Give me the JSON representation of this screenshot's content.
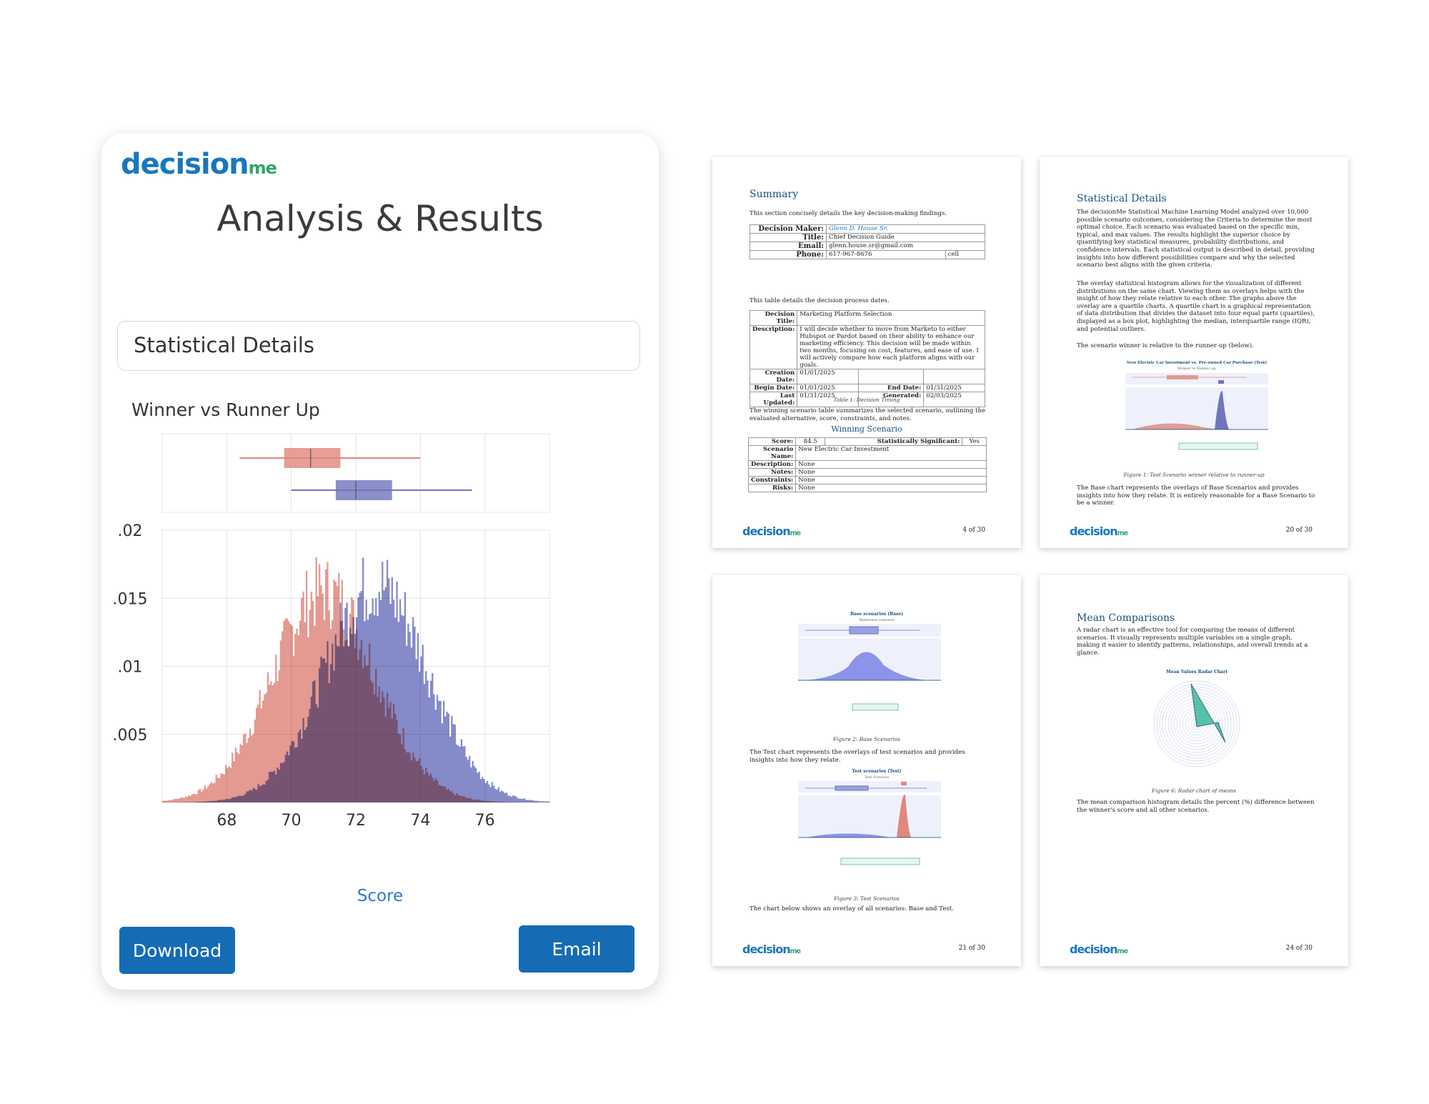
{
  "brand": {
    "name_main": "decision",
    "name_sub": "me",
    "color_primary": "#1877bd",
    "color_secondary": "#2ea866"
  },
  "card": {
    "title": "Analysis & Results",
    "section_title": "Statistical Details",
    "chart_heading": "Winner vs Runner Up",
    "download_label": "Download",
    "email_label": "Email"
  },
  "chart_data": {
    "type": "histogram",
    "xlabel": "Score",
    "x_ticks": [
      68,
      70,
      72,
      74,
      76
    ],
    "y_ticks": [
      ".005",
      ".01",
      ".015",
      ".02"
    ],
    "xlim": [
      66,
      78
    ],
    "ylim": [
      0,
      0.02
    ],
    "series": [
      {
        "color": "#e0877e",
        "mean": 71.0,
        "sd": 1.6,
        "peak": 0.0155,
        "box": {
          "min": 68.4,
          "q1": 69.8,
          "median": 70.6,
          "q3": 71.5,
          "max": 74.0
        }
      },
      {
        "color": "#6f75be",
        "mean": 72.6,
        "sd": 1.6,
        "peak": 0.016,
        "box": {
          "min": 70.0,
          "q1": 71.4,
          "median": 72.0,
          "q3": 73.1,
          "max": 75.6
        }
      }
    ]
  },
  "pages": {
    "summary": {
      "heading": "Summary",
      "intro": "This section concisely details the key decision-making findings.",
      "maker_label": "Decision Maker:",
      "maker": "Glenn D. House Sr.",
      "title_label": "Title:",
      "title": "Chief Decision Guide",
      "email_label": "Email:",
      "email": "glenn.house.sr@gmail.com",
      "phone_label": "Phone:",
      "phone": "617-967-8676",
      "phone_type": "cell",
      "dates_intro": "This table details the decision process dates.",
      "decision_title_label": "Decision Title:",
      "decision_title": "Marketing Platform Selection",
      "description_label": "Description:",
      "description": "I will decide whether to move from Marketo to either Hubspot or Pardot based on their ability to enhance our marketing efficiency. This decision will be made within two months, focusing on cost, features, and ease of use. I will actively compare how each platform aligns with our goals.",
      "creation_label": "Creation Date:",
      "creation": "01/01/2025",
      "begin_label": "Begin Date:",
      "begin": "01/01/2025",
      "end_label": "End Date:",
      "end": "01/31/2025",
      "updated_label": "Last Updated:",
      "updated": "01/31/2025",
      "generated_label": "Generated:",
      "generated": "02/03/2025",
      "table_caption": "Table 1: Decision Timing",
      "winning_intro": "The winning scenario table summarizes the selected scenario, outlining the evaluated alternative, score, constraints, and notes.",
      "winning_heading": "Winning Scenario",
      "score_label": "Score:",
      "score": "84.5",
      "significant_label": "Statistically Significant:",
      "significant": "Yes",
      "scenario_label": "Scenario Name:",
      "scenario": "New Electric Car Investment",
      "desc2_label": "Description:",
      "desc2": "None",
      "notes_label": "Notes:",
      "notes": "None",
      "constraints_label": "Constraints:",
      "constraints": "None",
      "risks_label": "Risks:",
      "risks": "None",
      "page": "4 of 30"
    },
    "stats": {
      "heading": "Statistical Details",
      "p1": "The decisionMe Statistical Machine Learning Model analyzed over 10,000 possible scenario outcomes, considering the Criteria to determine the most optimal choice. Each scenario was evaluated based on the specific min, typical, and max values. The results highlight the superior choice by quantifying key statistical measures, probability distributions, and confidence intervals. Each statistical output is described in detail, providing insights into how different possibilities compare and why the selected scenario best aligns with the given criteria.",
      "p2": "The overlay statistical histogram allows for the visualization of different distributions on the same chart. Viewing them as overlays helps with the insight of how they relate relative to each other. The graphs above the overlay are a quartile charts. A quartile chart is a graphical representation of data distribution that divides the dataset into four equal parts (quartiles), displayed as a box plot, highlighting the median, interquartile range (IQR), and potential outliers.",
      "p3": "The scenario winner is relative to the runner-up (below).",
      "chart_title": "New Electric Car Investment vs. Pre-owned Car Purchase (Test)",
      "chart_sub": "Winner vs Runner-up",
      "caption": "Figure 1: Test Scenario winner relative to runner-up",
      "p4": "The Base chart represents the overlays of Base Scenarios and provides insights into how they relate. It is entirely reasonable for a Base Scenario to be a winner.",
      "page": "20 of 30"
    },
    "base": {
      "chart1_title": "Base scenarios (Base)",
      "chart1_sub": "Reference scenario",
      "caption1": "Figure 2: Base Scenarios",
      "p1": "The Test chart represents the overlays of test scenarios and provides insights into how they relate.",
      "chart2_title": "Test scenarios (Test)",
      "chart2_sub": "Test Scenario",
      "caption2": "Figure 3: Test Scenarios",
      "p2": "The chart below shows an overlay of all scenarios: Base and Test.",
      "page": "21 of 30"
    },
    "means": {
      "heading": "Mean Comparisons",
      "p1": "A radar chart is an effective tool for comparing the means of different scenarios. It visually represents multiple variables on a single graph, making it easier to identify patterns, relationships, and overall trends at a glance.",
      "chart_title": "Mean Values Radar Chart",
      "caption": "Figure 6: Radar chart of means",
      "p2": "The mean comparison histogram details the percent (%) difference between the winner's score and all other scenarios.",
      "page": "24 of 30"
    }
  }
}
